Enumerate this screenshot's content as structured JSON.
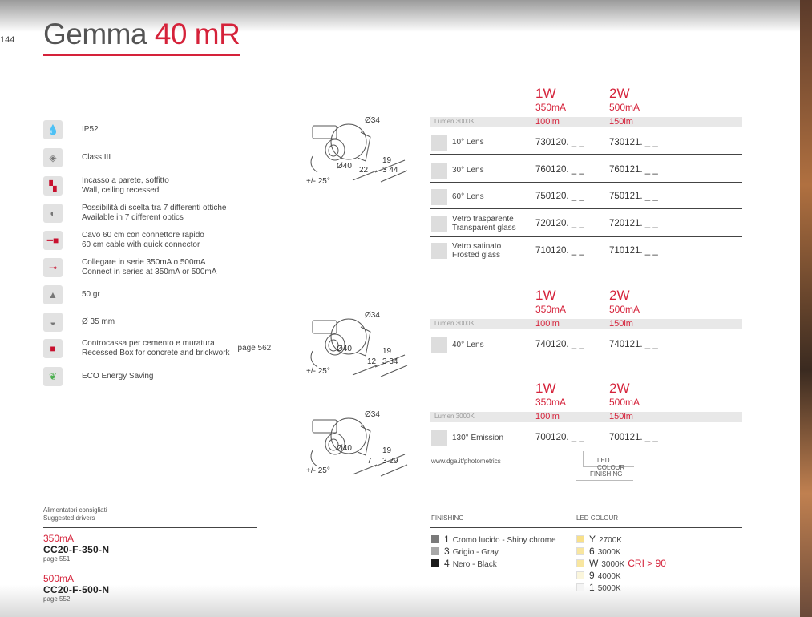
{
  "page": {
    "number": "144",
    "title_main": "Gemma",
    "title_accent": "40 mR"
  },
  "features": [
    {
      "icon": "drop-icon",
      "lines": [
        "IP52"
      ]
    },
    {
      "icon": "class-iii-icon",
      "lines": [
        "Class III"
      ]
    },
    {
      "icon": "recessed-icon",
      "lines": [
        "Incasso a parete, soffitto",
        "Wall, ceiling recessed"
      ]
    },
    {
      "icon": "optics-icon",
      "lines": [
        "Possibilità di scelta tra 7 differenti ottiche",
        "Available in 7 different optics"
      ]
    },
    {
      "icon": "cable-connector-icon",
      "lines": [
        "Cavo 60 cm con connettore rapido",
        "60 cm cable with quick connector"
      ]
    },
    {
      "icon": "series-connection-icon",
      "lines": [
        "Collegare in serie 350mA o 500mA",
        "Connect in series at 350mA or 500mA"
      ]
    },
    {
      "icon": "weight-icon",
      "lines": [
        "50 gr"
      ]
    },
    {
      "icon": "diameter-icon",
      "lines": [
        "Ø 35 mm"
      ]
    },
    {
      "icon": "recessed-box-icon",
      "lines": [
        "Controcassa per cemento e muratura",
        "Recessed Box for concrete and brickwork"
      ],
      "page": "page 562"
    },
    {
      "icon": "eco-leaf-icon",
      "lines": [
        "ECO Energy Saving"
      ]
    }
  ],
  "drawings": [
    {
      "d1": "Ø34",
      "d2": "Ø40",
      "d3": "22",
      "d4": "19",
      "d5": "3 44",
      "angle": "+/- 25°"
    },
    {
      "d1": "Ø34",
      "d2": "Ø40",
      "d3": "12",
      "d4": "19",
      "d5": "3 34",
      "angle": "+/- 25°"
    },
    {
      "d1": "Ø34",
      "d2": "Ø40",
      "d3": "7",
      "d4": "19",
      "d5": "3 29",
      "angle": "+/- 25°"
    }
  ],
  "tables": [
    {
      "power": [
        "1W",
        "2W"
      ],
      "current": [
        "350mA",
        "500mA"
      ],
      "lumen_label": "Lumen 3000K",
      "lumen": [
        "100lm",
        "150lm"
      ],
      "rows": [
        {
          "label": [
            "10° Lens"
          ],
          "codes": [
            "730120. _ _",
            "730121. _ _"
          ]
        },
        {
          "label": [
            "30° Lens"
          ],
          "codes": [
            "760120. _ _",
            "760121. _ _"
          ]
        },
        {
          "label": [
            "60° Lens"
          ],
          "codes": [
            "750120. _ _",
            "750121. _ _"
          ]
        },
        {
          "label": [
            "Vetro trasparente",
            "Transparent glass"
          ],
          "codes": [
            "720120. _ _",
            "720121. _ _"
          ]
        },
        {
          "label": [
            "Vetro satinato",
            "Frosted glass"
          ],
          "codes": [
            "710120. _ _",
            "710121. _ _"
          ]
        }
      ]
    },
    {
      "power": [
        "1W",
        "2W"
      ],
      "current": [
        "350mA",
        "500mA"
      ],
      "lumen_label": "Lumen 3000K",
      "lumen": [
        "100lm",
        "150lm"
      ],
      "rows": [
        {
          "label": [
            "40° Lens"
          ],
          "codes": [
            "740120. _ _",
            "740121. _ _"
          ]
        }
      ]
    },
    {
      "power": [
        "1W",
        "2W"
      ],
      "current": [
        "350mA",
        "500mA"
      ],
      "lumen_label": "Lumen 3000K",
      "lumen": [
        "100lm",
        "150lm"
      ],
      "rows": [
        {
          "label": [
            "130° Emission"
          ],
          "codes": [
            "700120. _ _",
            "700121. _ _"
          ]
        }
      ]
    }
  ],
  "photometrics_link": "www.dga.it/photometrics",
  "code_key": {
    "led_colour": "LED COLOUR",
    "finishing": "FINISHING"
  },
  "drivers": {
    "title": [
      "Alimentatori consigliati",
      "Suggested drivers"
    ],
    "items": [
      {
        "current": "350mA",
        "model": "CC20-F-350-N",
        "page": "page 551"
      },
      {
        "current": "500mA",
        "model": "CC20-F-500-N",
        "page": "page 552"
      }
    ]
  },
  "finishing": {
    "title": "FINISHING",
    "items": [
      {
        "code": "1",
        "label": "Cromo lucido - Shiny chrome",
        "color": "#7a7a7a"
      },
      {
        "code": "3",
        "label": "Grigio - Gray",
        "color": "#a8a8a8"
      },
      {
        "code": "4",
        "label": "Nero - Black",
        "color": "#1a1a1a"
      }
    ]
  },
  "led_colour": {
    "title": "LED COLOUR",
    "items": [
      {
        "code": "Y",
        "label": "2700K",
        "color": "#f8e08a"
      },
      {
        "code": "6",
        "label": "3000K",
        "color": "#f8e6a0"
      },
      {
        "code": "W",
        "label": "3000K",
        "note": "CRI > 90",
        "color": "#f8e6a0"
      },
      {
        "code": "9",
        "label": "4000K",
        "color": "#fbf6dc"
      },
      {
        "code": "1",
        "label": "5000K",
        "color": "#f4f4f4"
      }
    ]
  },
  "colors": {
    "accent": "#d5223a"
  }
}
